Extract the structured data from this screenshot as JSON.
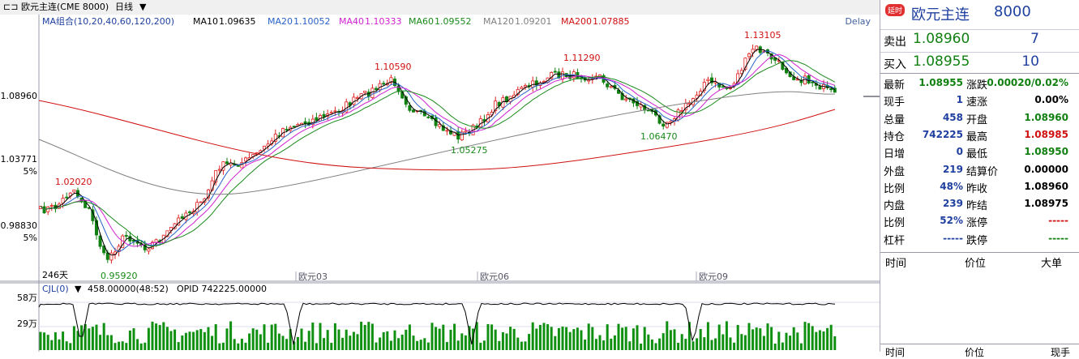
{
  "header": {
    "title": "欧元主连(CME 8000)",
    "period": "日线"
  },
  "indicator": {
    "label": "MA组合(10,20,40,60,120,200)",
    "items": [
      {
        "name": "MA10",
        "value": "1.09635",
        "color": "#000000"
      },
      {
        "name": "MA20",
        "value": "1.10052",
        "color": "#2a62c9"
      },
      {
        "name": "MA40",
        "value": "1.10333",
        "color": "#d020d0"
      },
      {
        "name": "MA60",
        "value": "1.09552",
        "color": "#1a8a1a"
      },
      {
        "name": "MA120",
        "value": "1.09201",
        "color": "#808080"
      },
      {
        "name": "MA200",
        "value": "1.07885",
        "color": "#d01010"
      }
    ]
  },
  "delay": "Delay",
  "price_axis": [
    "1.08960",
    "1.03771",
    "5%",
    "0.98830",
    "5%"
  ],
  "annotations": [
    "1.13105",
    "1.10590",
    "1.11290",
    "1.02020",
    "1.05275",
    "1.06470",
    "0.95920"
  ],
  "time_axis": [
    "246天",
    "欧元03",
    "欧元06",
    "欧元09"
  ],
  "volume": {
    "label": "CJL(0)",
    "value": "458.00000(48:52)",
    "opid": "OPID 742225.00000",
    "axis": [
      "58万",
      "29万"
    ]
  },
  "side": {
    "badge": "延时",
    "name": "欧元主连",
    "code": "8000",
    "sell": {
      "label": "卖出",
      "price": "1.08960",
      "qty": "7"
    },
    "buy": {
      "label": "买入",
      "price": "1.08955",
      "qty": "10"
    },
    "rows": [
      [
        "最新",
        "1.08955",
        "涨跌",
        "0.00020/0.02%"
      ],
      [
        "现手",
        "1",
        "速涨",
        "0.00%"
      ],
      [
        "总量",
        "458",
        "开盘",
        "1.08960"
      ],
      [
        "持仓",
        "742225",
        "最高",
        "1.08985"
      ],
      [
        "日增",
        "0",
        "最低",
        "1.08950"
      ],
      [
        "外盘",
        "219",
        "结算价",
        "0.00000"
      ],
      [
        "比例",
        "48%",
        "昨收",
        "1.08960"
      ],
      [
        "内盘",
        "239",
        "昨结",
        "1.08975"
      ],
      [
        "比例",
        "52%",
        "涨停",
        "-----"
      ],
      [
        "杠杆",
        "-----",
        "跌停",
        "-----"
      ]
    ],
    "trades_header": [
      "时间",
      "价位",
      "大单"
    ],
    "footer": [
      "时间",
      "价位",
      "现手"
    ]
  }
}
